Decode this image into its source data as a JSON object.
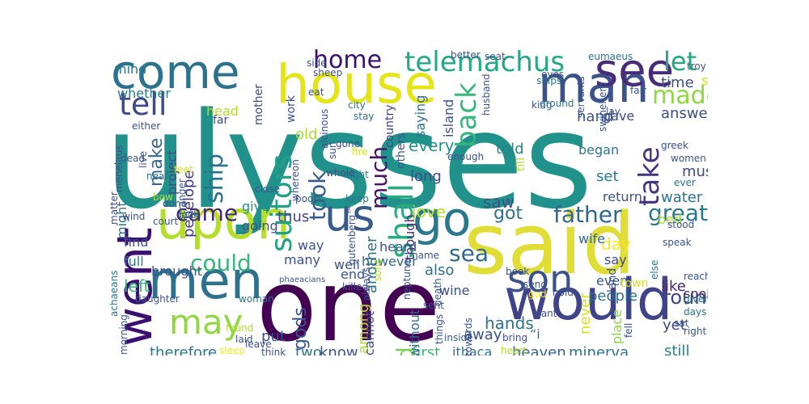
{
  "words": [
    {
      "text": "ulysses",
      "color": "#21918c"
    },
    {
      "text": "one",
      "color": "#440154"
    },
    {
      "text": "said",
      "color": "#e1dd37"
    },
    {
      "text": "house",
      "color": "#e5e419"
    },
    {
      "text": "man",
      "color": "#3b528b"
    },
    {
      "text": "would",
      "color": "#404387"
    },
    {
      "text": "upon",
      "color": "#b5de2b"
    },
    {
      "text": "come",
      "color": "#2c728e"
    },
    {
      "text": "went",
      "color": "#3b0f70"
    },
    {
      "text": "men",
      "color": "#2c728e"
    },
    {
      "text": "us",
      "color": "#375a8c"
    },
    {
      "text": "go",
      "color": "#2a788e"
    },
    {
      "text": "see",
      "color": "#472c7a"
    },
    {
      "text": "son",
      "color": "#3b528b"
    },
    {
      "text": "tell",
      "color": "#3e4989"
    },
    {
      "text": "may",
      "color": "#90d743"
    },
    {
      "text": "telemachus",
      "color": "#22a884"
    },
    {
      "text": "suitors",
      "color": "#1fa187"
    },
    {
      "text": "shall",
      "color": "#27ad81"
    },
    {
      "text": "back",
      "color": "#35b779"
    },
    {
      "text": "take",
      "color": "#46327e"
    },
    {
      "text": "let",
      "color": "#22a884"
    },
    {
      "text": "made",
      "color": "#8fd744"
    },
    {
      "text": "home",
      "color": "#3b0f70"
    },
    {
      "text": "came",
      "color": "#482475"
    },
    {
      "text": "could",
      "color": "#35b779"
    },
    {
      "text": "father",
      "color": "#31688e"
    },
    {
      "text": "great",
      "color": "#2a788e"
    },
    {
      "text": "good",
      "color": "#7ad151"
    },
    {
      "text": "much",
      "color": "#481467"
    },
    {
      "text": "took",
      "color": "#365c8d"
    },
    {
      "text": "ship",
      "color": "#2c728e"
    },
    {
      "text": "sea",
      "color": "#31688e"
    },
    {
      "text": "round",
      "color": "#414487"
    },
    {
      "text": "gods",
      "color": "#38588c"
    },
    {
      "text": "got",
      "color": "#2c728e"
    },
    {
      "text": "therefore",
      "color": "#2a788e"
    },
    {
      "text": "minerva",
      "color": "#2c728e"
    },
    {
      "text": "heaven",
      "color": "#35608d"
    },
    {
      "text": "still",
      "color": "#26828e"
    },
    {
      "text": "answered",
      "color": "#3e4a89"
    },
    {
      "text": "time",
      "color": "#3b528b"
    },
    {
      "text": "soon",
      "color": "#d0e11c"
    },
    {
      "text": "mind",
      "color": "#2a788e"
    },
    {
      "text": "whether",
      "color": "#2a788e"
    },
    {
      "text": "might",
      "color": "#2d708e"
    },
    {
      "text": "make",
      "color": "#31688e"
    },
    {
      "text": "penelope",
      "color": "#443983"
    },
    {
      "text": "project",
      "color": "#3e4989"
    },
    {
      "text": "every",
      "color": "#21918c"
    },
    {
      "text": "told",
      "color": "#26828e"
    },
    {
      "text": "long",
      "color": "#3e4a89"
    },
    {
      "text": "saw",
      "color": "#3b528b"
    },
    {
      "text": "must",
      "color": "#3e4989"
    },
    {
      "text": "set",
      "color": "#2a788e"
    },
    {
      "text": "return",
      "color": "#3b528b"
    },
    {
      "text": "water",
      "color": "#2c728e"
    },
    {
      "text": "bed",
      "color": "#a8db34"
    },
    {
      "text": "began",
      "color": "#2a788e"
    },
    {
      "text": "hand",
      "color": "#3b528b"
    },
    {
      "text": "gave",
      "color": "#3e4989"
    },
    {
      "text": "old",
      "color": "#aadc32"
    },
    {
      "text": "jove",
      "color": "#b2dd2d"
    },
    {
      "text": "give",
      "color": "#21918c"
    },
    {
      "text": "thus",
      "color": "#414487"
    },
    {
      "text": "going",
      "color": "#3b528b"
    },
    {
      "text": "another",
      "color": "#2d708e"
    },
    {
      "text": "though",
      "color": "#482878"
    },
    {
      "text": "also",
      "color": "#2e6e8e"
    },
    {
      "text": "way",
      "color": "#3b528b"
    },
    {
      "text": "many",
      "color": "#3b528b"
    },
    {
      "text": "find",
      "color": "#3b528b"
    },
    {
      "text": "left",
      "color": "#35b779"
    },
    {
      "text": "full",
      "color": "#2a788e"
    },
    {
      "text": "brought",
      "color": "#3b528b"
    },
    {
      "text": "day",
      "color": "#fde725"
    },
    {
      "text": "say",
      "color": "#3e4989"
    },
    {
      "text": "wife",
      "color": "#31688e"
    },
    {
      "text": "never",
      "color": "#d5e21a"
    },
    {
      "text": "even",
      "color": "#3b528b"
    },
    {
      "text": "like",
      "color": "#482475"
    },
    {
      "text": "spoke",
      "color": "#482878"
    },
    {
      "text": "people",
      "color": "#2c728e"
    },
    {
      "text": "town",
      "color": "#d2e21b"
    },
    {
      "text": "land",
      "color": "#3b528b"
    },
    {
      "text": "place",
      "color": "#8bd646"
    },
    {
      "text": "yet",
      "color": "#3e4989"
    },
    {
      "text": "hands",
      "color": "#2c728e"
    },
    {
      "text": "wine",
      "color": "#3e4989"
    },
    {
      "text": "first",
      "color": "#38b977"
    },
    {
      "text": "ithaca",
      "color": "#2a788e"
    },
    {
      "text": "away",
      "color": "#3b528b"
    },
    {
      "text": "two",
      "color": "#2c728e"
    },
    {
      "text": "know",
      "color": "#3b528b"
    },
    {
      "text": "put",
      "color": "#3b528b"
    },
    {
      "text": "among",
      "color": "#b2dd2d"
    },
    {
      "text": "without",
      "color": "#2c728e"
    },
    {
      "text": "cannot",
      "color": "#3b528b"
    },
    {
      "text": "end",
      "color": "#3b528b"
    },
    {
      "text": "well",
      "color": "#3b528b"
    },
    {
      "text": "however",
      "color": "#31688e"
    },
    {
      "text": "heard",
      "color": "#3b528b"
    },
    {
      "text": "country",
      "color": "#414487"
    },
    {
      "text": "work",
      "color": "#3b528b"
    },
    {
      "text": "mother",
      "color": "#3e4989"
    },
    {
      "text": "head",
      "color": "#b2dd2d"
    },
    {
      "text": "far",
      "color": "#3e4989"
    },
    {
      "text": "saying",
      "color": "#2c728e"
    },
    {
      "text": "island",
      "color": "#3b528b"
    },
    {
      "text": "others",
      "color": "#3b528b"
    },
    {
      "text": "till",
      "color": "#b2dd2d"
    },
    {
      "text": "“i",
      "color": "#2c728e"
    },
    {
      "text": "sons",
      "color": "#b2dd2d"
    },
    {
      "text": "killed",
      "color": "#3b528b"
    },
    {
      "text": "woman",
      "color": "#2c728e"
    },
    {
      "text": "daughter",
      "color": "#3b528b"
    },
    {
      "text": "achaeans",
      "color": "#2c728e"
    },
    {
      "text": "wind",
      "color": "#3b528b"
    },
    {
      "text": "court",
      "color": "#3b528b"
    },
    {
      "text": "matter",
      "color": "#3e4989"
    },
    {
      "text": "done",
      "color": "#3b528b"
    },
    {
      "text": "look",
      "color": "#2c728e"
    },
    {
      "text": "bow",
      "color": "#aadc32"
    },
    {
      "text": "stranger",
      "color": "#3b528b"
    },
    {
      "text": "near",
      "color": "#2c728e"
    },
    {
      "text": "live",
      "color": "#3b528b"
    },
    {
      "text": "either",
      "color": "#3b528b"
    },
    {
      "text": "whereon",
      "color": "#3b528b"
    },
    {
      "text": "close",
      "color": "#3b528b"
    },
    {
      "text": "poor",
      "color": "#3b528b"
    },
    {
      "text": "keep",
      "color": "#2c728e"
    },
    {
      "text": "night",
      "color": "#2c728e"
    },
    {
      "text": "sun",
      "color": "#3b528b"
    },
    {
      "text": "whole",
      "color": "#3b528b"
    },
    {
      "text": "fire",
      "color": "#d2e21b"
    },
    {
      "text": "enough",
      "color": "#3b528b"
    },
    {
      "text": "stay",
      "color": "#2c728e"
    },
    {
      "text": "city",
      "color": "#2c728e"
    },
    {
      "text": "eat",
      "color": "#3b528b"
    },
    {
      "text": "alcinous",
      "color": "#3b528b"
    },
    {
      "text": "sheep",
      "color": "#3b528b"
    },
    {
      "text": "side",
      "color": "#3b528b"
    },
    {
      "text": "better",
      "color": "#3b528b"
    },
    {
      "text": "seat",
      "color": "#3b528b"
    },
    {
      "text": "eumaeus",
      "color": "#2c728e"
    },
    {
      "text": "troy",
      "color": "#3b528b"
    },
    {
      "text": "eyes",
      "color": "#3b528b"
    },
    {
      "text": "fair",
      "color": "#3b528b"
    },
    {
      "text": "swineherd",
      "color": "#3b528b"
    },
    {
      "text": "servants",
      "color": "#3b528b"
    },
    {
      "text": "drink",
      "color": "#3b528b"
    },
    {
      "text": "king",
      "color": "#3b528b"
    },
    {
      "text": "ships",
      "color": "#2c728e"
    },
    {
      "text": "husband",
      "color": "#3b528b"
    },
    {
      "text": "ground",
      "color": "#2c728e"
    },
    {
      "text": "lay",
      "color": "#3b528b"
    },
    {
      "text": "greek",
      "color": "#3b528b"
    },
    {
      "text": "women",
      "color": "#3b528b"
    },
    {
      "text": "ever",
      "color": "#2c728e"
    },
    {
      "text": "stood",
      "color": "#3b528b"
    },
    {
      "text": "nothing",
      "color": "#2c728e"
    },
    {
      "text": "speak",
      "color": "#3b528b"
    },
    {
      "text": "else",
      "color": "#2c728e"
    },
    {
      "text": "reached",
      "color": "#3b528b"
    },
    {
      "text": "young",
      "color": "#3b528b"
    },
    {
      "text": "book",
      "color": "#3b528b"
    },
    {
      "text": "send",
      "color": "#3b528b"
    },
    {
      "text": "hold",
      "color": "#3b528b"
    },
    {
      "text": "want",
      "color": "#3b528b"
    },
    {
      "text": "days",
      "color": "#2c728e"
    },
    {
      "text": "given",
      "color": "#2c728e"
    },
    {
      "text": "fell",
      "color": "#3b528b"
    },
    {
      "text": "best",
      "color": "#3b528b"
    },
    {
      "text": "right",
      "color": "#3b528b"
    },
    {
      "text": "sat",
      "color": "#3b528b"
    },
    {
      "text": "bring",
      "color": "#3b528b"
    },
    {
      "text": "heart",
      "color": "#b2dd2d"
    },
    {
      "text": "room",
      "color": "#3b528b"
    },
    {
      "text": "towards",
      "color": "#3b528b"
    },
    {
      "text": "inside",
      "color": "#3b528b"
    },
    {
      "text": "things",
      "color": "#3b528b"
    },
    {
      "text": "sent",
      "color": "#3b528b"
    },
    {
      "text": "death",
      "color": "#3b528b"
    },
    {
      "text": "god",
      "color": "#fde725"
    },
    {
      "text": "name",
      "color": "#3b528b"
    },
    {
      "text": "neptune",
      "color": "#3b528b"
    },
    {
      "text": "gutenberg™",
      "color": "#3b528b"
    },
    {
      "text": "found",
      "color": "#b2dd2d"
    },
    {
      "text": "laid",
      "color": "#3b528b"
    },
    {
      "text": "sleep",
      "color": "#fde725"
    },
    {
      "text": "morning",
      "color": "#3b528b"
    },
    {
      "text": "think",
      "color": "#3b528b"
    },
    {
      "text": "leave",
      "color": "#3b528b"
    },
    {
      "text": "always",
      "color": "#3b528b"
    },
    {
      "text": "gone",
      "color": "#3b528b"
    },
    {
      "text": "dead",
      "color": "#3b528b"
    },
    {
      "text": "feet",
      "color": "#d2e21b"
    },
    {
      "text": "menelaus",
      "color": "#3b528b"
    },
    {
      "text": "phaeacians",
      "color": "#3b528b"
    }
  ]
}
